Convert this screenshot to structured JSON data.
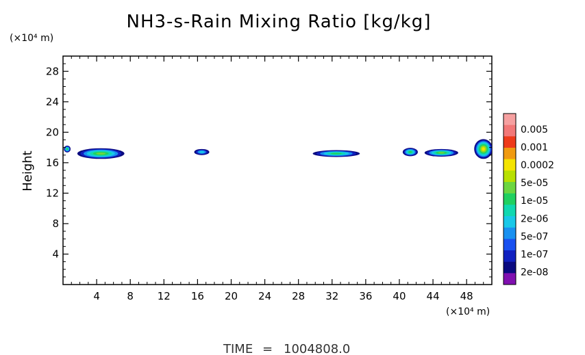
{
  "chart_data": {
    "type": "heatmap",
    "title": "NH3-s-Rain Mixing Ratio [kg/kg]",
    "xlabel": "",
    "ylabel": "Height",
    "x_unit": "(×10⁴ m)",
    "y_unit": "(×10⁴ m)",
    "xlim": [
      0,
      51
    ],
    "ylim": [
      0,
      30
    ],
    "xticks": [
      4,
      8,
      12,
      16,
      20,
      24,
      28,
      32,
      36,
      40,
      44,
      48
    ],
    "yticks": [
      4,
      8,
      12,
      16,
      20,
      24,
      28
    ],
    "grid": false,
    "colorbar": {
      "labels": [
        "0.005",
        "0.001",
        "0.0002",
        "5e-05",
        "1e-05",
        "2e-06",
        "5e-07",
        "1e-07",
        "2e-08"
      ],
      "colors": [
        "#f6a0a0",
        "#f27878",
        "#ee3a1a",
        "#f09a10",
        "#f4e400",
        "#b8e000",
        "#6cd640",
        "#20d060",
        "#10d8b0",
        "#18c8e8",
        "#1890f0",
        "#1850f0",
        "#1020c0",
        "#0a0a80",
        "#8010b0"
      ]
    },
    "cells": [
      {
        "x": 0.5,
        "y": 17.8,
        "w": 0.8,
        "h": 0.9,
        "level": 0.5
      },
      {
        "x": 4.5,
        "y": 17.2,
        "w": 5.6,
        "h": 1.4,
        "level": 0.6
      },
      {
        "x": 16.5,
        "y": 17.4,
        "w": 1.8,
        "h": 0.8,
        "level": 0.35
      },
      {
        "x": 32.5,
        "y": 17.2,
        "w": 5.6,
        "h": 0.9,
        "level": 0.55
      },
      {
        "x": 41.3,
        "y": 17.4,
        "w": 1.8,
        "h": 1.1,
        "level": 0.5
      },
      {
        "x": 45.0,
        "y": 17.3,
        "w": 4.0,
        "h": 1.0,
        "level": 0.6
      },
      {
        "x": 50.0,
        "y": 17.8,
        "w": 2.2,
        "h": 2.6,
        "level": 0.85
      }
    ]
  },
  "footer": {
    "time_label": "TIME",
    "time_sep": "=",
    "time_value": "1004808.0"
  }
}
